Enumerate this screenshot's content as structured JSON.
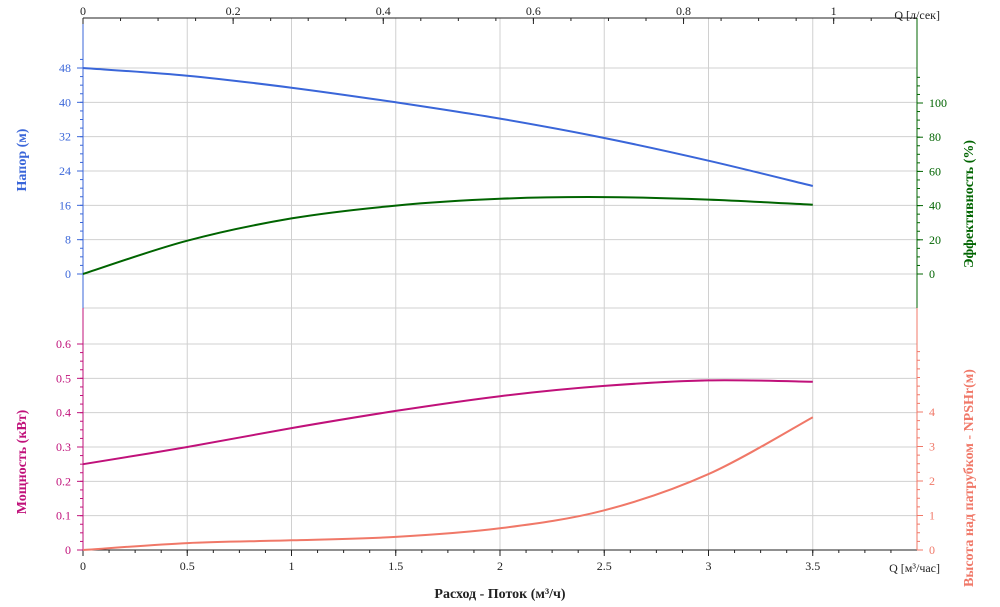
{
  "chart_data": {
    "type": "line",
    "x_bottom": {
      "label": "Расход - Поток (м³/ч)",
      "unit_label": "Q [м³/час]",
      "range": [
        0,
        4
      ],
      "ticks": [
        "0",
        "0.5",
        "1",
        "1.5",
        "2",
        "2.5",
        "3",
        "3.5"
      ],
      "tick_values": [
        0,
        0.5,
        1,
        1.5,
        2,
        2.5,
        3,
        3.5
      ]
    },
    "x_top": {
      "unit_label": "Q [л/сек]",
      "range": [
        0,
        1.111
      ],
      "ticks": [
        "0",
        "0.2",
        "0.4",
        "0.6",
        "0.8",
        "1"
      ],
      "tick_values": [
        0,
        0.2,
        0.4,
        0.6,
        0.8,
        1
      ]
    },
    "upper_left_axis": {
      "label": "Напор (м)",
      "color": "#3a66d9",
      "range": [
        0,
        56
      ],
      "ticks": [
        "0",
        "8",
        "16",
        "24",
        "32",
        "40",
        "48"
      ],
      "tick_values": [
        0,
        8,
        16,
        24,
        32,
        40,
        48
      ]
    },
    "upper_right_axis": {
      "label": "Эффективность (%)",
      "color": "#006400",
      "range": [
        0,
        140
      ],
      "ticks": [
        "0",
        "20",
        "40",
        "60",
        "80",
        "100"
      ],
      "tick_values": [
        0,
        20,
        40,
        60,
        80,
        100
      ]
    },
    "lower_left_axis": {
      "label": "Мощность (кВт)",
      "color": "#c0117a",
      "range": [
        0,
        0.6
      ],
      "ticks": [
        "0",
        "0.1",
        "0.2",
        "0.3",
        "0.4",
        "0.5",
        "0.6"
      ],
      "tick_values": [
        0,
        0.1,
        0.2,
        0.3,
        0.4,
        0.5,
        0.6
      ]
    },
    "lower_right_axis": {
      "label": "Высота над патрубком - NPSHr(м)",
      "color": "#f07868",
      "range": [
        0,
        6
      ],
      "ticks": [
        "0",
        "1",
        "2",
        "3",
        "4"
      ],
      "tick_values": [
        0,
        1,
        2,
        3,
        4
      ]
    },
    "grid": true,
    "series": [
      {
        "panel": "upper",
        "axis": "left",
        "color": "#3a66d9",
        "x": [
          0,
          0.5,
          1,
          1.5,
          2,
          2.5,
          3,
          3.5
        ],
        "y": [
          48,
          46.2,
          43.4,
          40,
          36.2,
          31.7,
          26.4,
          20.5
        ]
      },
      {
        "panel": "upper",
        "axis": "right",
        "color": "#006400",
        "x": [
          0,
          0.5,
          1,
          1.5,
          2,
          2.5,
          3,
          3.5
        ],
        "y": [
          0,
          19.5,
          32.5,
          40,
          44,
          45,
          43.5,
          40.5
        ]
      },
      {
        "panel": "lower",
        "axis": "left",
        "color": "#c0117a",
        "x": [
          0,
          0.5,
          1,
          1.5,
          2,
          2.5,
          3,
          3.5
        ],
        "y": [
          0.25,
          0.3,
          0.355,
          0.405,
          0.448,
          0.478,
          0.494,
          0.49
        ]
      },
      {
        "panel": "lower",
        "axis": "right",
        "color": "#f07868",
        "x": [
          0,
          0.5,
          1,
          1.5,
          2,
          2.5,
          3,
          3.5
        ],
        "y": [
          0,
          0.2,
          0.28,
          0.38,
          0.63,
          1.15,
          2.2,
          3.85
        ]
      }
    ]
  }
}
